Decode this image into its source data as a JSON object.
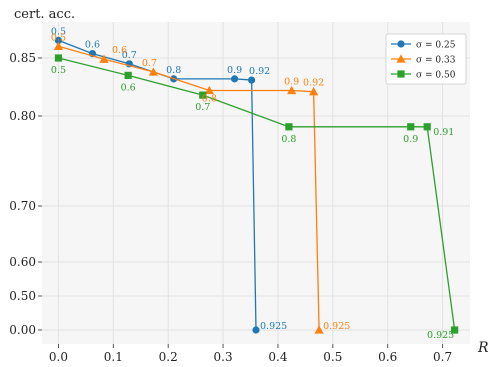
{
  "chart_data": {
    "type": "line",
    "ylabel": "cert. acc.",
    "xlabel": "R",
    "xlim": [
      -0.03,
      0.75
    ],
    "xticks": [
      0.0,
      0.1,
      0.2,
      0.3,
      0.4,
      0.5,
      0.6,
      0.7
    ],
    "x_tick_labels": [
      "0.0",
      "0.1",
      "0.2",
      "0.3",
      "0.4",
      "0.5",
      "0.6",
      "0.7"
    ],
    "y_ticks": [
      {
        "value": 0.0,
        "label": "0.00"
      },
      {
        "value": 0.5,
        "label": "0.50"
      },
      {
        "value": 0.6,
        "label": "0.60"
      },
      {
        "value": 0.7,
        "label": "0.70"
      },
      {
        "value": 0.8,
        "label": "0.80"
      },
      {
        "value": 0.85,
        "label": "0.85"
      }
    ],
    "y_axis_scale": "piecewise (0.00–0.50 compressed)",
    "grid": true,
    "legend_position": "top-right",
    "series": [
      {
        "name": "σ = 0.25",
        "color": "#1f77b4",
        "marker": "circle",
        "points": [
          {
            "x": 0.0,
            "y": 0.862,
            "label": "0.5"
          },
          {
            "x": 0.062,
            "y": 0.853,
            "label": "0.6"
          },
          {
            "x": 0.129,
            "y": 0.845,
            "label": "0.7"
          },
          {
            "x": 0.21,
            "y": 0.832,
            "label": "0.8"
          },
          {
            "x": 0.321,
            "y": 0.832,
            "label": "0.9"
          },
          {
            "x": 0.352,
            "y": 0.831,
            "label": "0.92"
          },
          {
            "x": 0.36,
            "y": 0.0,
            "label": "0.925"
          }
        ]
      },
      {
        "name": "σ = 0.33",
        "color": "#ff7f0e",
        "marker": "triangle",
        "points": [
          {
            "x": 0.0,
            "y": 0.858,
            "label": "0.5"
          },
          {
            "x": 0.083,
            "y": 0.849,
            "label": "0.6"
          },
          {
            "x": 0.173,
            "y": 0.838,
            "label": "0.7"
          },
          {
            "x": 0.275,
            "y": 0.822,
            "label": "0.8"
          },
          {
            "x": 0.425,
            "y": 0.822,
            "label": "0.9"
          },
          {
            "x": 0.465,
            "y": 0.821,
            "label": "0.92"
          },
          {
            "x": 0.475,
            "y": 0.0,
            "label": "0.925"
          }
        ]
      },
      {
        "name": "σ = 0.50",
        "color": "#2ca02c",
        "marker": "square",
        "points": [
          {
            "x": 0.0,
            "y": 0.85,
            "label": "0.5"
          },
          {
            "x": 0.127,
            "y": 0.835,
            "label": "0.6"
          },
          {
            "x": 0.263,
            "y": 0.818,
            "label": "0.7"
          },
          {
            "x": 0.42,
            "y": 0.788,
            "label": "0.8"
          },
          {
            "x": 0.642,
            "y": 0.788,
            "label": "0.9"
          },
          {
            "x": 0.672,
            "y": 0.788,
            "label": "0.91"
          },
          {
            "x": 0.722,
            "y": 0.0,
            "label": "0.925"
          }
        ]
      }
    ]
  }
}
